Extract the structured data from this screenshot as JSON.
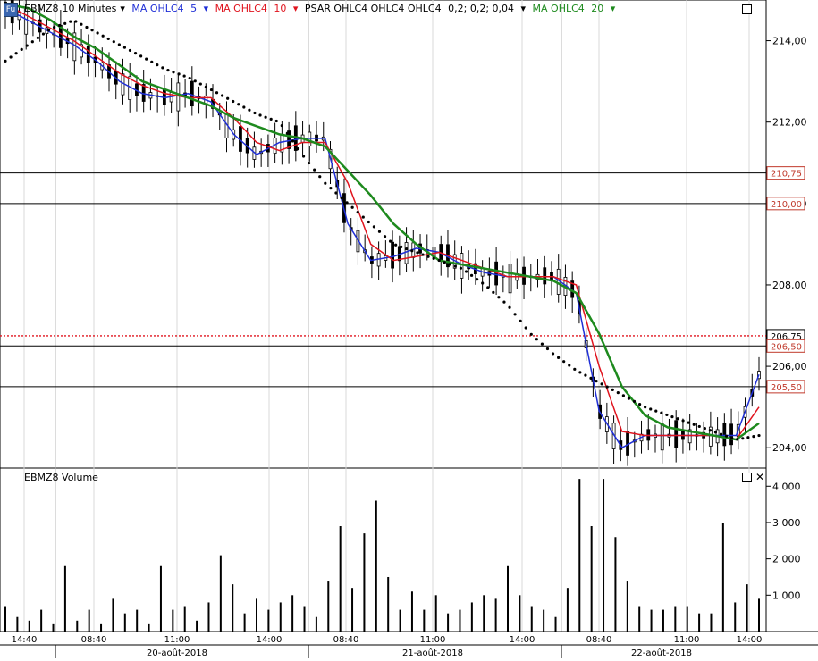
{
  "header": {
    "symbol": "EBMZ8",
    "interval": "10 Minutes",
    "badge": "Fu",
    "ma5_label": "MA OHLC4",
    "ma5_period": "5",
    "ma10_label": "MA OHLC4",
    "ma10_period": "10",
    "psar_label": "PSAR OHLC4 OHLC4 OHLC4",
    "psar_params": "0,2; 0,2; 0,04",
    "ma20_label": "MA OHLC4",
    "ma20_period": "20"
  },
  "volume_header": "EBMZ8 Volume",
  "colors": {
    "ma5": "#1f2fd6",
    "ma10": "#e0141e",
    "ma20": "#1e8a1e",
    "psar": "#000000",
    "ref": "#c0392b"
  },
  "price_ticks": [
    "214,00",
    "212,00",
    "210,00",
    "208,00",
    "206,00",
    "204,00"
  ],
  "volume_ticks": [
    "4 000",
    "3 000",
    "2 000",
    "1 000"
  ],
  "time_labels": [
    "14:40",
    "08:40",
    "11:00",
    "14:00",
    "08:40",
    "11:00",
    "14:00",
    "08:40",
    "11:00",
    "14:00"
  ],
  "date_labels": [
    "20-août-2018",
    "21-août-2018",
    "22-août-2018"
  ],
  "level_tags": [
    "210,75",
    "210,00",
    "206,75",
    "206,50",
    "205,50"
  ],
  "chart_data": {
    "type": "line",
    "title": "EBMZ8 10 Minutes",
    "y_range": [
      203.5,
      215.0
    ],
    "horizontal_levels": [
      210.75,
      210.0,
      206.5,
      205.5
    ],
    "dotted_level": 206.75,
    "series": [
      {
        "name": "MA OHLC4 5",
        "values": [
          214.8,
          214.5,
          214.2,
          213.9,
          213.5,
          213.0,
          212.7,
          212.6,
          212.7,
          212.5,
          211.7,
          211.2,
          211.5,
          211.6,
          211.6,
          209.5,
          208.6,
          208.7,
          208.9,
          208.8,
          208.5,
          208.3,
          208.2,
          208.2,
          208.2,
          207.8,
          204.9,
          204.0,
          204.3,
          204.3,
          204.3,
          204.3,
          204.3,
          205.8
        ]
      },
      {
        "name": "MA OHLC4 10",
        "values": [
          214.9,
          214.6,
          214.3,
          214.0,
          213.6,
          213.2,
          212.9,
          212.7,
          212.6,
          212.6,
          212.1,
          211.5,
          211.3,
          211.5,
          211.5,
          210.5,
          209.0,
          208.6,
          208.7,
          208.8,
          208.6,
          208.4,
          208.2,
          208.2,
          208.2,
          208.0,
          206.0,
          204.4,
          204.3,
          204.3,
          204.3,
          204.3,
          204.2,
          205.0
        ]
      },
      {
        "name": "MA OHLC4 20",
        "values": [
          214.9,
          214.8,
          214.5,
          214.1,
          213.8,
          213.4,
          213.0,
          212.8,
          212.6,
          212.4,
          212.1,
          211.9,
          211.7,
          211.6,
          211.4,
          210.8,
          210.2,
          209.5,
          209.0,
          208.6,
          208.5,
          208.4,
          208.3,
          208.2,
          208.1,
          207.8,
          206.8,
          205.5,
          204.8,
          204.5,
          204.4,
          204.3,
          204.2,
          204.6
        ]
      },
      {
        "name": "PSAR OHLC4 OHLC4 OHLC4 0,2; 0,2; 0,04",
        "values": [
          213.5,
          213.9,
          214.3,
          214.5,
          214.2,
          213.9,
          213.6,
          213.3,
          213.1,
          212.8,
          212.5,
          212.2,
          212.0,
          211.2,
          210.5,
          210.0,
          209.5,
          209.0,
          208.8,
          208.6,
          208.4,
          208.0,
          207.5,
          206.8,
          206.3,
          205.9,
          205.6,
          205.3,
          205.0,
          204.8,
          204.6,
          204.4,
          204.2,
          204.3
        ]
      }
    ],
    "volume": {
      "ylabel": "EBMZ8 Volume",
      "y_range": [
        0,
        4400
      ],
      "values": [
        700,
        400,
        300,
        600,
        200,
        1800,
        300,
        600,
        200,
        900,
        500,
        600,
        200,
        1800,
        600,
        700,
        300,
        800,
        2100,
        1300,
        500,
        900,
        600,
        800,
        1000,
        700,
        400,
        1400,
        2900,
        1200,
        2700,
        3600,
        1500,
        600,
        1100,
        600,
        1000,
        500,
        600,
        800,
        1000,
        900,
        1800,
        1000,
        700,
        600,
        400,
        1200,
        4200,
        2900,
        4200,
        2600,
        1400,
        700,
        600,
        600,
        700,
        700,
        500,
        500,
        3000,
        800,
        1300,
        900
      ]
    }
  }
}
